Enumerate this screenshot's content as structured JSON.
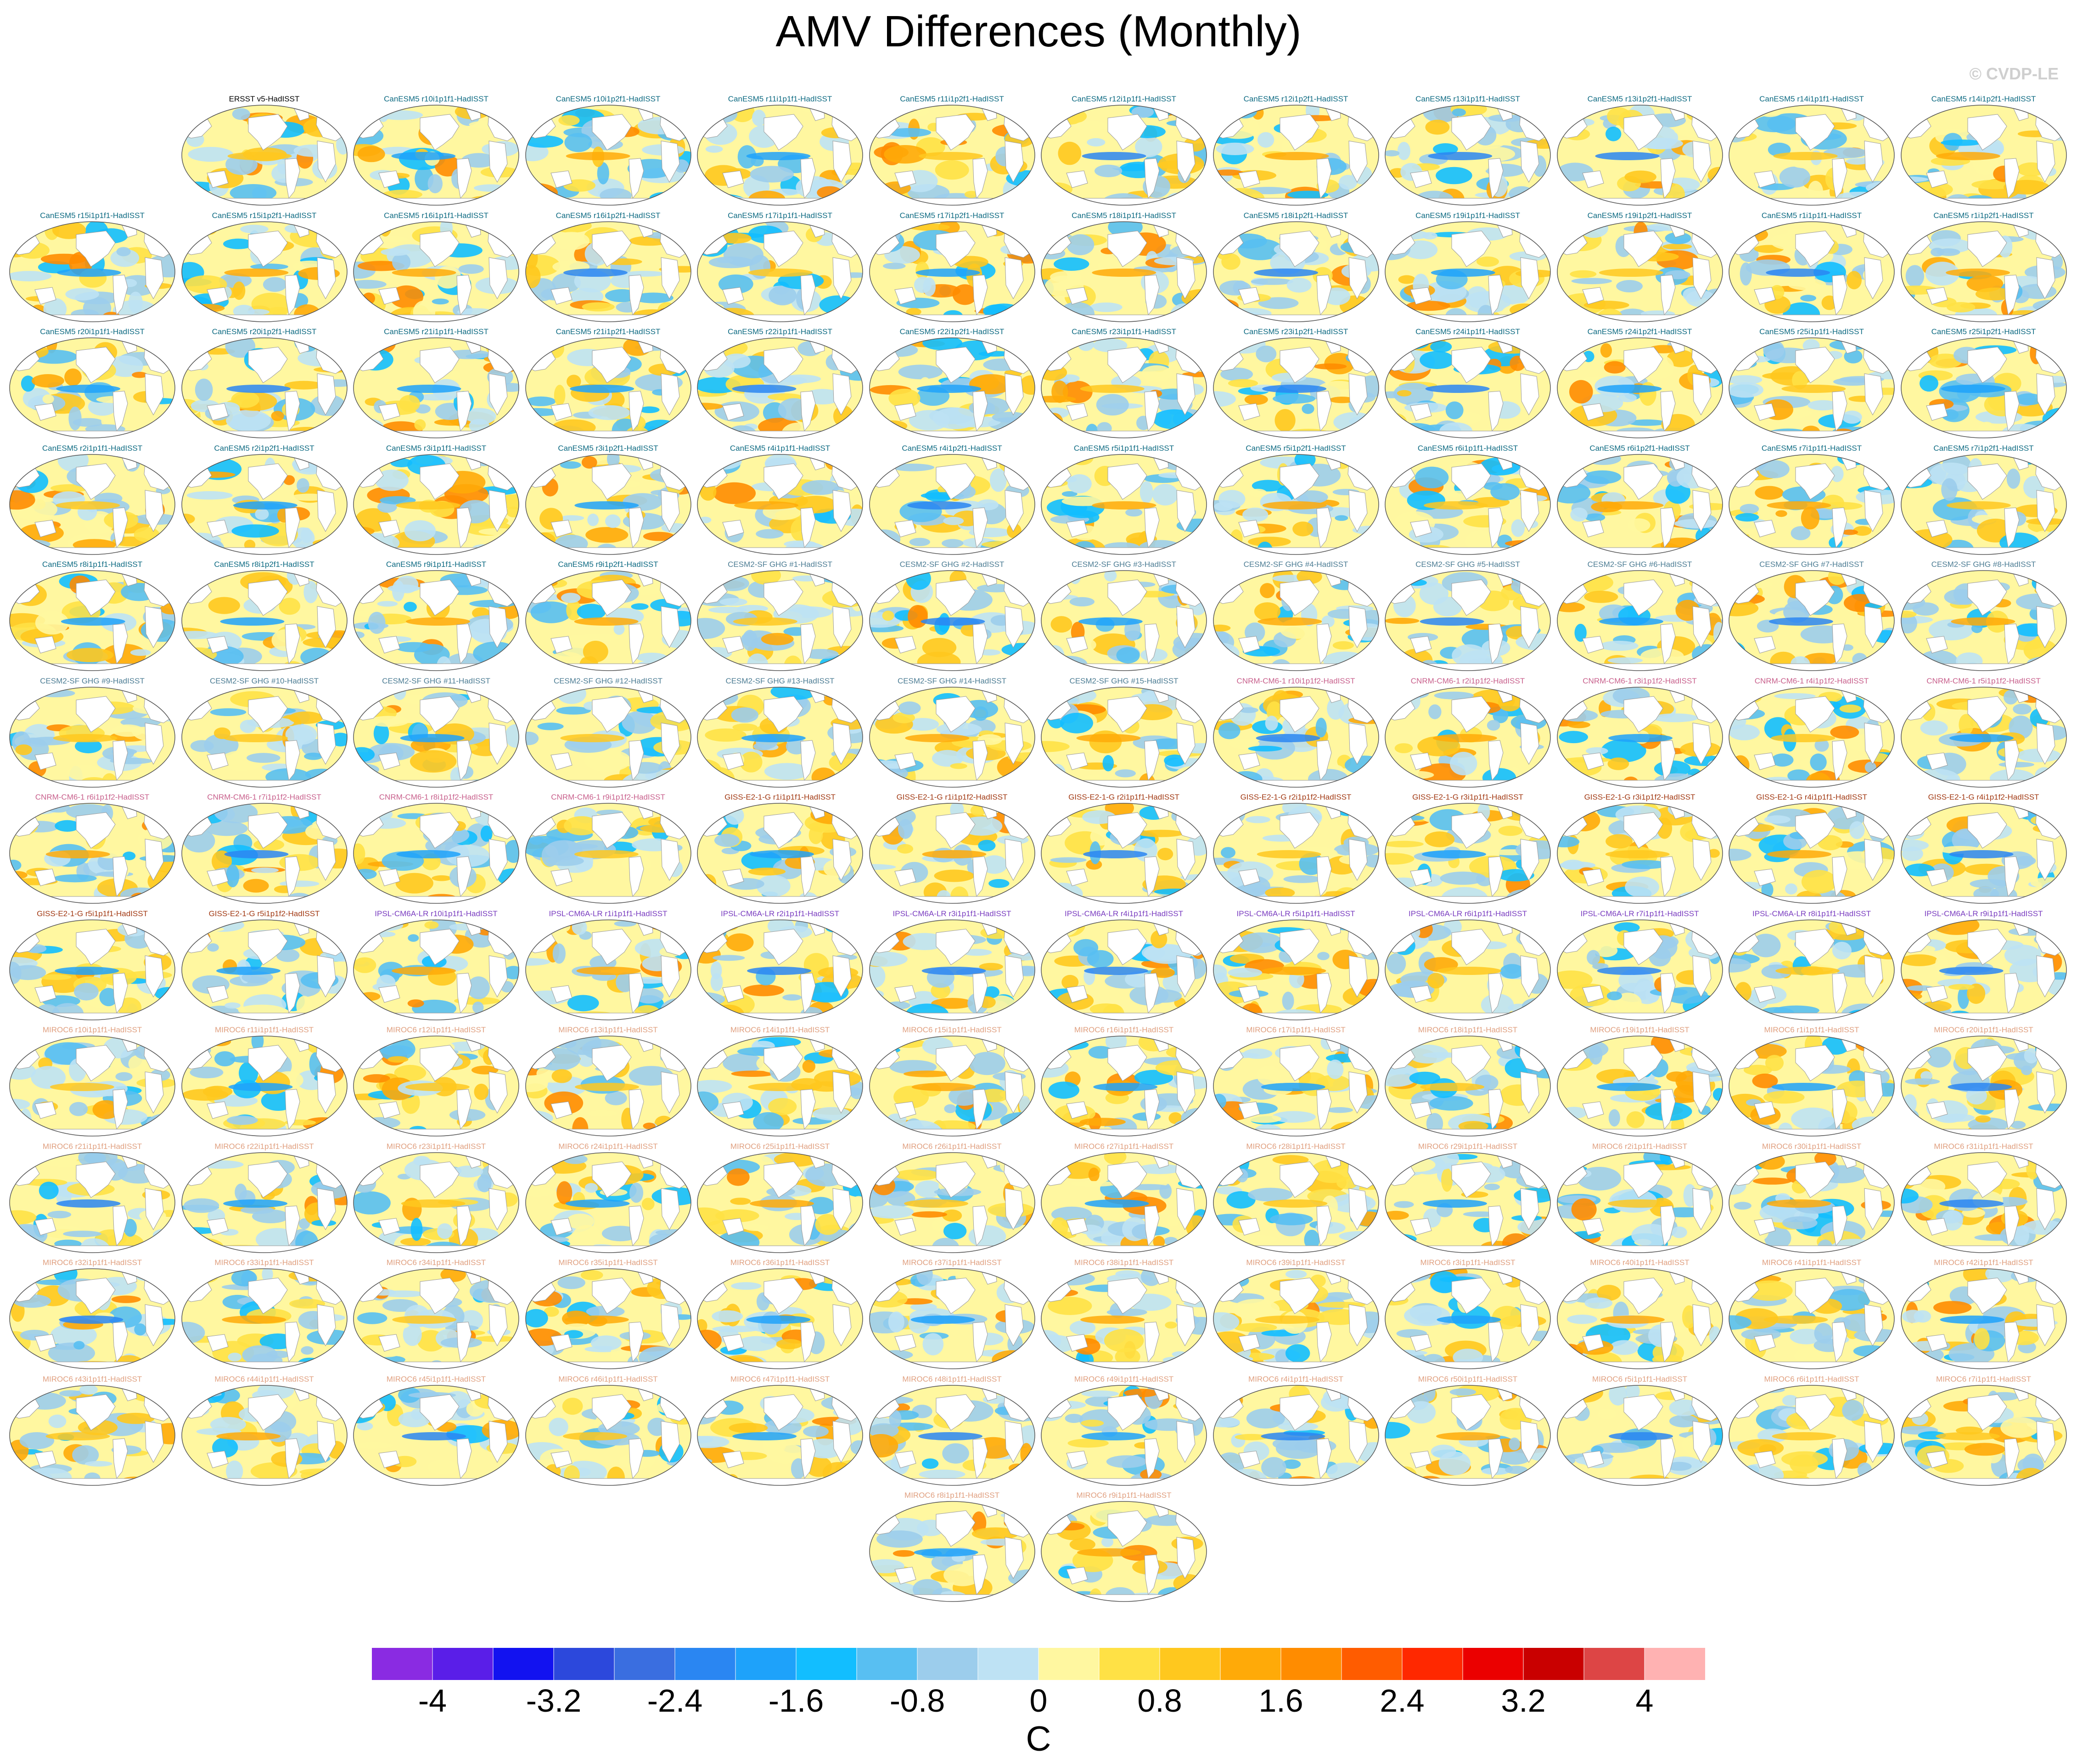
{
  "title": "AMV Differences (Monthly)",
  "credit": "© CVDP-LE",
  "units": "C",
  "colorbar": {
    "colors": [
      "#8a2be2",
      "#5a1ee8",
      "#1212f0",
      "#2c48dc",
      "#3a6ee0",
      "#2a86f2",
      "#1ea2fa",
      "#12beff",
      "#58bff2",
      "#9ccdec",
      "#bee2f4",
      "#fff7a0",
      "#ffe145",
      "#ffc81e",
      "#ffaa08",
      "#ff8c00",
      "#ff5c00",
      "#ff2800",
      "#eb0000",
      "#c90000",
      "#dd4545",
      "#ffb2b2"
    ],
    "tick_labels": [
      "-4",
      "-3.2",
      "-2.4",
      "-1.6",
      "-0.8",
      "0",
      "0.8",
      "1.6",
      "2.4",
      "3.2",
      "4"
    ]
  },
  "group_colors": {
    "obs": "#000000",
    "canesm5": "#0d6a82",
    "cesm2": "#4d7d94",
    "cnrm": "#c8608c",
    "giss": "#a23a14",
    "ipsl": "#7a3dc0",
    "miroc6": "#e0a080"
  },
  "panels": [
    {
      "label": "ERSST v5-HadISST",
      "group": "obs"
    },
    {
      "label": "CanESM5 r10i1p1f1-HadISST",
      "group": "canesm5"
    },
    {
      "label": "CanESM5 r10i1p2f1-HadISST",
      "group": "canesm5"
    },
    {
      "label": "CanESM5 r11i1p1f1-HadISST",
      "group": "canesm5"
    },
    {
      "label": "CanESM5 r11i1p2f1-HadISST",
      "group": "canesm5"
    },
    {
      "label": "CanESM5 r12i1p1f1-HadISST",
      "group": "canesm5"
    },
    {
      "label": "CanESM5 r12i1p2f1-HadISST",
      "group": "canesm5"
    },
    {
      "label": "CanESM5 r13i1p1f1-HadISST",
      "group": "canesm5"
    },
    {
      "label": "CanESM5 r13i1p2f1-HadISST",
      "group": "canesm5"
    },
    {
      "label": "CanESM5 r14i1p1f1-HadISST",
      "group": "canesm5"
    },
    {
      "label": "CanESM5 r14i1p2f1-HadISST",
      "group": "canesm5"
    },
    {
      "label": "CanESM5 r15i1p1f1-HadISST",
      "group": "canesm5"
    },
    {
      "label": "CanESM5 r15i1p2f1-HadISST",
      "group": "canesm5"
    },
    {
      "label": "CanESM5 r16i1p1f1-HadISST",
      "group": "canesm5"
    },
    {
      "label": "CanESM5 r16i1p2f1-HadISST",
      "group": "canesm5"
    },
    {
      "label": "CanESM5 r17i1p1f1-HadISST",
      "group": "canesm5"
    },
    {
      "label": "CanESM5 r17i1p2f1-HadISST",
      "group": "canesm5"
    },
    {
      "label": "CanESM5 r18i1p1f1-HadISST",
      "group": "canesm5"
    },
    {
      "label": "CanESM5 r18i1p2f1-HadISST",
      "group": "canesm5"
    },
    {
      "label": "CanESM5 r19i1p1f1-HadISST",
      "group": "canesm5"
    },
    {
      "label": "CanESM5 r19i1p2f1-HadISST",
      "group": "canesm5"
    },
    {
      "label": "CanESM5 r1i1p1f1-HadISST",
      "group": "canesm5"
    },
    {
      "label": "CanESM5 r1i1p2f1-HadISST",
      "group": "canesm5"
    },
    {
      "label": "CanESM5 r20i1p1f1-HadISST",
      "group": "canesm5"
    },
    {
      "label": "CanESM5 r20i1p2f1-HadISST",
      "group": "canesm5"
    },
    {
      "label": "CanESM5 r21i1p1f1-HadISST",
      "group": "canesm5"
    },
    {
      "label": "CanESM5 r21i1p2f1-HadISST",
      "group": "canesm5"
    },
    {
      "label": "CanESM5 r22i1p1f1-HadISST",
      "group": "canesm5"
    },
    {
      "label": "CanESM5 r22i1p2f1-HadISST",
      "group": "canesm5"
    },
    {
      "label": "CanESM5 r23i1p1f1-HadISST",
      "group": "canesm5"
    },
    {
      "label": "CanESM5 r23i1p2f1-HadISST",
      "group": "canesm5"
    },
    {
      "label": "CanESM5 r24i1p1f1-HadISST",
      "group": "canesm5"
    },
    {
      "label": "CanESM5 r24i1p2f1-HadISST",
      "group": "canesm5"
    },
    {
      "label": "CanESM5 r25i1p1f1-HadISST",
      "group": "canesm5"
    },
    {
      "label": "CanESM5 r25i1p2f1-HadISST",
      "group": "canesm5"
    },
    {
      "label": "CanESM5 r2i1p1f1-HadISST",
      "group": "canesm5"
    },
    {
      "label": "CanESM5 r2i1p2f1-HadISST",
      "group": "canesm5"
    },
    {
      "label": "CanESM5 r3i1p1f1-HadISST",
      "group": "canesm5"
    },
    {
      "label": "CanESM5 r3i1p2f1-HadISST",
      "group": "canesm5"
    },
    {
      "label": "CanESM5 r4i1p1f1-HadISST",
      "group": "canesm5"
    },
    {
      "label": "CanESM5 r4i1p2f1-HadISST",
      "group": "canesm5"
    },
    {
      "label": "CanESM5 r5i1p1f1-HadISST",
      "group": "canesm5"
    },
    {
      "label": "CanESM5 r5i1p2f1-HadISST",
      "group": "canesm5"
    },
    {
      "label": "CanESM5 r6i1p1f1-HadISST",
      "group": "canesm5"
    },
    {
      "label": "CanESM5 r6i1p2f1-HadISST",
      "group": "canesm5"
    },
    {
      "label": "CanESM5 r7i1p1f1-HadISST",
      "group": "canesm5"
    },
    {
      "label": "CanESM5 r7i1p2f1-HadISST",
      "group": "canesm5"
    },
    {
      "label": "CanESM5 r8i1p1f1-HadISST",
      "group": "canesm5"
    },
    {
      "label": "CanESM5 r8i1p2f1-HadISST",
      "group": "canesm5"
    },
    {
      "label": "CanESM5 r9i1p1f1-HadISST",
      "group": "canesm5"
    },
    {
      "label": "CanESM5 r9i1p2f1-HadISST",
      "group": "canesm5"
    },
    {
      "label": "CESM2-SF GHG #1-HadISST",
      "group": "cesm2"
    },
    {
      "label": "CESM2-SF GHG #2-HadISST",
      "group": "cesm2"
    },
    {
      "label": "CESM2-SF GHG #3-HadISST",
      "group": "cesm2"
    },
    {
      "label": "CESM2-SF GHG #4-HadISST",
      "group": "cesm2"
    },
    {
      "label": "CESM2-SF GHG #5-HadISST",
      "group": "cesm2"
    },
    {
      "label": "CESM2-SF GHG #6-HadISST",
      "group": "cesm2"
    },
    {
      "label": "CESM2-SF GHG #7-HadISST",
      "group": "cesm2"
    },
    {
      "label": "CESM2-SF GHG #8-HadISST",
      "group": "cesm2"
    },
    {
      "label": "CESM2-SF GHG #9-HadISST",
      "group": "cesm2"
    },
    {
      "label": "CESM2-SF GHG #10-HadISST",
      "group": "cesm2"
    },
    {
      "label": "CESM2-SF GHG #11-HadISST",
      "group": "cesm2"
    },
    {
      "label": "CESM2-SF GHG #12-HadISST",
      "group": "cesm2"
    },
    {
      "label": "CESM2-SF GHG #13-HadISST",
      "group": "cesm2"
    },
    {
      "label": "CESM2-SF GHG #14-HadISST",
      "group": "cesm2"
    },
    {
      "label": "CESM2-SF GHG #15-HadISST",
      "group": "cesm2"
    },
    {
      "label": "CNRM-CM6-1 r10i1p1f2-HadISST",
      "group": "cnrm"
    },
    {
      "label": "CNRM-CM6-1 r2i1p1f2-HadISST",
      "group": "cnrm"
    },
    {
      "label": "CNRM-CM6-1 r3i1p1f2-HadISST",
      "group": "cnrm"
    },
    {
      "label": "CNRM-CM6-1 r4i1p1f2-HadISST",
      "group": "cnrm"
    },
    {
      "label": "CNRM-CM6-1 r5i1p1f2-HadISST",
      "group": "cnrm"
    },
    {
      "label": "CNRM-CM6-1 r6i1p1f2-HadISST",
      "group": "cnrm"
    },
    {
      "label": "CNRM-CM6-1 r7i1p1f2-HadISST",
      "group": "cnrm"
    },
    {
      "label": "CNRM-CM6-1 r8i1p1f2-HadISST",
      "group": "cnrm"
    },
    {
      "label": "CNRM-CM6-1 r9i1p1f2-HadISST",
      "group": "cnrm"
    },
    {
      "label": "GISS-E2-1-G r1i1p1f1-HadISST",
      "group": "giss"
    },
    {
      "label": "GISS-E2-1-G r1i1p1f2-HadISST",
      "group": "giss"
    },
    {
      "label": "GISS-E2-1-G r2i1p1f1-HadISST",
      "group": "giss"
    },
    {
      "label": "GISS-E2-1-G r2i1p1f2-HadISST",
      "group": "giss"
    },
    {
      "label": "GISS-E2-1-G r3i1p1f1-HadISST",
      "group": "giss"
    },
    {
      "label": "GISS-E2-1-G r3i1p1f2-HadISST",
      "group": "giss"
    },
    {
      "label": "GISS-E2-1-G r4i1p1f1-HadISST",
      "group": "giss"
    },
    {
      "label": "GISS-E2-1-G r4i1p1f2-HadISST",
      "group": "giss"
    },
    {
      "label": "GISS-E2-1-G r5i1p1f1-HadISST",
      "group": "giss"
    },
    {
      "label": "GISS-E2-1-G r5i1p1f2-HadISST",
      "group": "giss"
    },
    {
      "label": "IPSL-CM6A-LR r10i1p1f1-HadISST",
      "group": "ipsl"
    },
    {
      "label": "IPSL-CM6A-LR r1i1p1f1-HadISST",
      "group": "ipsl"
    },
    {
      "label": "IPSL-CM6A-LR r2i1p1f1-HadISST",
      "group": "ipsl"
    },
    {
      "label": "IPSL-CM6A-LR r3i1p1f1-HadISST",
      "group": "ipsl"
    },
    {
      "label": "IPSL-CM6A-LR r4i1p1f1-HadISST",
      "group": "ipsl"
    },
    {
      "label": "IPSL-CM6A-LR r5i1p1f1-HadISST",
      "group": "ipsl"
    },
    {
      "label": "IPSL-CM6A-LR r6i1p1f1-HadISST",
      "group": "ipsl"
    },
    {
      "label": "IPSL-CM6A-LR r7i1p1f1-HadISST",
      "group": "ipsl"
    },
    {
      "label": "IPSL-CM6A-LR r8i1p1f1-HadISST",
      "group": "ipsl"
    },
    {
      "label": "IPSL-CM6A-LR r9i1p1f1-HadISST",
      "group": "ipsl"
    },
    {
      "label": "MIROC6 r10i1p1f1-HadISST",
      "group": "miroc6"
    },
    {
      "label": "MIROC6 r11i1p1f1-HadISST",
      "group": "miroc6"
    },
    {
      "label": "MIROC6 r12i1p1f1-HadISST",
      "group": "miroc6"
    },
    {
      "label": "MIROC6 r13i1p1f1-HadISST",
      "group": "miroc6"
    },
    {
      "label": "MIROC6 r14i1p1f1-HadISST",
      "group": "miroc6"
    },
    {
      "label": "MIROC6 r15i1p1f1-HadISST",
      "group": "miroc6"
    },
    {
      "label": "MIROC6 r16i1p1f1-HadISST",
      "group": "miroc6"
    },
    {
      "label": "MIROC6 r17i1p1f1-HadISST",
      "group": "miroc6"
    },
    {
      "label": "MIROC6 r18i1p1f1-HadISST",
      "group": "miroc6"
    },
    {
      "label": "MIROC6 r19i1p1f1-HadISST",
      "group": "miroc6"
    },
    {
      "label": "MIROC6 r1i1p1f1-HadISST",
      "group": "miroc6"
    },
    {
      "label": "MIROC6 r20i1p1f1-HadISST",
      "group": "miroc6"
    },
    {
      "label": "MIROC6 r21i1p1f1-HadISST",
      "group": "miroc6"
    },
    {
      "label": "MIROC6 r22i1p1f1-HadISST",
      "group": "miroc6"
    },
    {
      "label": "MIROC6 r23i1p1f1-HadISST",
      "group": "miroc6"
    },
    {
      "label": "MIROC6 r24i1p1f1-HadISST",
      "group": "miroc6"
    },
    {
      "label": "MIROC6 r25i1p1f1-HadISST",
      "group": "miroc6"
    },
    {
      "label": "MIROC6 r26i1p1f1-HadISST",
      "group": "miroc6"
    },
    {
      "label": "MIROC6 r27i1p1f1-HadISST",
      "group": "miroc6"
    },
    {
      "label": "MIROC6 r28i1p1f1-HadISST",
      "group": "miroc6"
    },
    {
      "label": "MIROC6 r29i1p1f1-HadISST",
      "group": "miroc6"
    },
    {
      "label": "MIROC6 r2i1p1f1-HadISST",
      "group": "miroc6"
    },
    {
      "label": "MIROC6 r30i1p1f1-HadISST",
      "group": "miroc6"
    },
    {
      "label": "MIROC6 r31i1p1f1-HadISST",
      "group": "miroc6"
    },
    {
      "label": "MIROC6 r32i1p1f1-HadISST",
      "group": "miroc6"
    },
    {
      "label": "MIROC6 r33i1p1f1-HadISST",
      "group": "miroc6"
    },
    {
      "label": "MIROC6 r34i1p1f1-HadISST",
      "group": "miroc6"
    },
    {
      "label": "MIROC6 r35i1p1f1-HadISST",
      "group": "miroc6"
    },
    {
      "label": "MIROC6 r36i1p1f1-HadISST",
      "group": "miroc6"
    },
    {
      "label": "MIROC6 r37i1p1f1-HadISST",
      "group": "miroc6"
    },
    {
      "label": "MIROC6 r38i1p1f1-HadISST",
      "group": "miroc6"
    },
    {
      "label": "MIROC6 r39i1p1f1-HadISST",
      "group": "miroc6"
    },
    {
      "label": "MIROC6 r3i1p1f1-HadISST",
      "group": "miroc6"
    },
    {
      "label": "MIROC6 r40i1p1f1-HadISST",
      "group": "miroc6"
    },
    {
      "label": "MIROC6 r41i1p1f1-HadISST",
      "group": "miroc6"
    },
    {
      "label": "MIROC6 r42i1p1f1-HadISST",
      "group": "miroc6"
    },
    {
      "label": "MIROC6 r43i1p1f1-HadISST",
      "group": "miroc6"
    },
    {
      "label": "MIROC6 r44i1p1f1-HadISST",
      "group": "miroc6"
    },
    {
      "label": "MIROC6 r45i1p1f1-HadISST",
      "group": "miroc6"
    },
    {
      "label": "MIROC6 r46i1p1f1-HadISST",
      "group": "miroc6"
    },
    {
      "label": "MIROC6 r47i1p1f1-HadISST",
      "group": "miroc6"
    },
    {
      "label": "MIROC6 r48i1p1f1-HadISST",
      "group": "miroc6"
    },
    {
      "label": "MIROC6 r49i1p1f1-HadISST",
      "group": "miroc6"
    },
    {
      "label": "MIROC6 r4i1p1f1-HadISST",
      "group": "miroc6"
    },
    {
      "label": "MIROC6 r50i1p1f1-HadISST",
      "group": "miroc6"
    },
    {
      "label": "MIROC6 r5i1p1f1-HadISST",
      "group": "miroc6"
    },
    {
      "label": "MIROC6 r6i1p1f1-HadISST",
      "group": "miroc6"
    },
    {
      "label": "MIROC6 r7i1p1f1-HadISST",
      "group": "miroc6"
    },
    {
      "label": "MIROC6 r8i1p1f1-HadISST",
      "group": "miroc6"
    },
    {
      "label": "MIROC6 r9i1p1f1-HadISST",
      "group": "miroc6"
    }
  ]
}
